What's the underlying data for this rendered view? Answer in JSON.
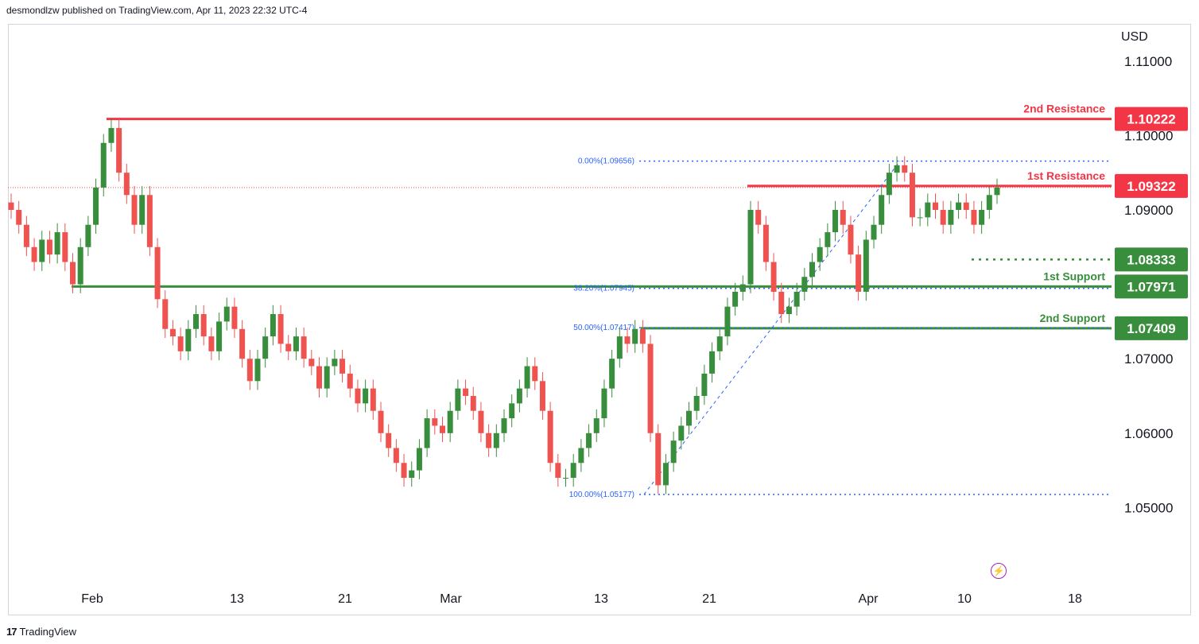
{
  "header": {
    "text": "desmondlzw published on TradingView.com, Apr 11, 2023 22:32 UTC-4"
  },
  "footer": {
    "logo_text": "TradingView",
    "logo_glyph": "17"
  },
  "chart_data": {
    "type": "candlestick",
    "currency_label": "USD",
    "ylim": [
      1.04,
      1.115
    ],
    "y_ticks": [
      "1.11000",
      "1.10000",
      "1.09000",
      "1.07000",
      "1.06000",
      "1.05000"
    ],
    "x_ticks": [
      "Feb",
      "13",
      "21",
      "Mar",
      "13",
      "21",
      "Apr",
      "10",
      "18"
    ],
    "levels": [
      {
        "label": "2nd Resistance",
        "price": "1.10222",
        "color": "#f23645"
      },
      {
        "label": "1st Resistance",
        "price": "1.09322",
        "color": "#f23645"
      },
      {
        "label": "",
        "price": "1.08333",
        "color": "#388e3c",
        "dotted": true
      },
      {
        "label": "1st Support",
        "price": "1.07971",
        "color": "#388e3c"
      },
      {
        "label": "2nd Support",
        "price": "1.07409",
        "color": "#388e3c"
      }
    ],
    "fib_levels": [
      {
        "label": "0.00%(1.09656)",
        "price": 1.09656
      },
      {
        "label": "38.20%(1.07945)",
        "price": 1.07945
      },
      {
        "label": "50.00%(1.07417)",
        "price": 1.07417
      },
      {
        "label": "100.00%(1.05177)",
        "price": 1.05177
      }
    ],
    "last_price": 1.093,
    "closes": [
      1.09,
      1.088,
      1.085,
      1.083,
      1.086,
      1.084,
      1.087,
      1.083,
      1.08,
      1.085,
      1.088,
      1.093,
      1.099,
      1.101,
      1.095,
      1.092,
      1.088,
      1.092,
      1.085,
      1.078,
      1.074,
      1.073,
      1.071,
      1.074,
      1.076,
      1.073,
      1.071,
      1.075,
      1.077,
      1.074,
      1.07,
      1.067,
      1.07,
      1.073,
      1.076,
      1.072,
      1.071,
      1.073,
      1.07,
      1.069,
      1.066,
      1.069,
      1.07,
      1.068,
      1.066,
      1.064,
      1.066,
      1.063,
      1.06,
      1.058,
      1.056,
      1.054,
      1.055,
      1.058,
      1.062,
      1.061,
      1.06,
      1.063,
      1.066,
      1.065,
      1.063,
      1.06,
      1.058,
      1.06,
      1.062,
      1.064,
      1.066,
      1.069,
      1.067,
      1.063,
      1.056,
      1.054,
      1.054,
      1.056,
      1.058,
      1.06,
      1.062,
      1.066,
      1.07,
      1.073,
      1.072,
      1.074,
      1.072,
      1.06,
      1.053,
      1.056,
      1.059,
      1.061,
      1.063,
      1.065,
      1.068,
      1.071,
      1.073,
      1.077,
      1.079,
      1.08,
      1.09,
      1.088,
      1.083,
      1.079,
      1.076,
      1.077,
      1.079,
      1.081,
      1.083,
      1.085,
      1.087,
      1.09,
      1.088,
      1.084,
      1.079,
      1.086,
      1.088,
      1.092,
      1.095,
      1.096,
      1.095,
      1.089,
      1.089,
      1.091,
      1.09,
      1.088,
      1.09,
      1.091,
      1.09,
      1.088,
      1.09,
      1.092,
      1.093
    ]
  }
}
